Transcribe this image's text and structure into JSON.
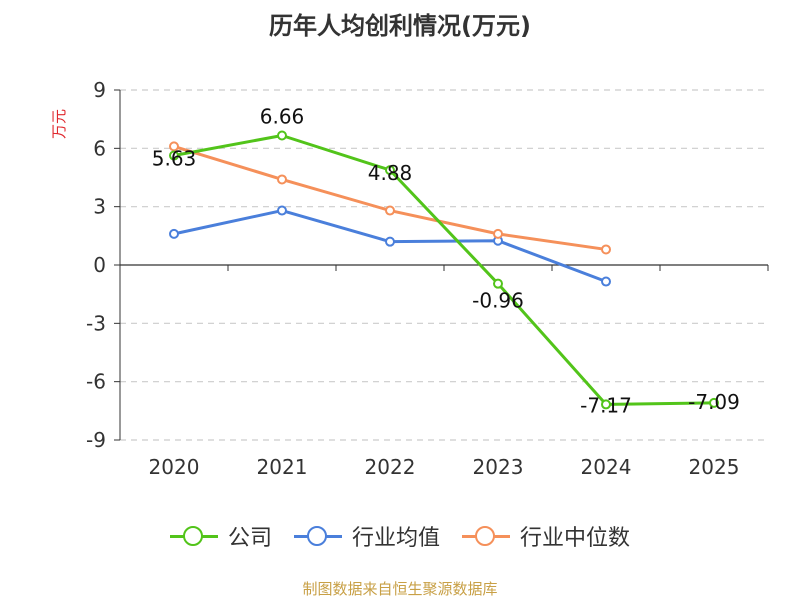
{
  "chart_data": {
    "type": "line",
    "title": "历年人均创利情况(万元)",
    "ylabel": "万元",
    "xlabel": "",
    "categories": [
      "2020",
      "2021",
      "2022",
      "2023",
      "2024",
      "2025"
    ],
    "ylim": [
      -9,
      9
    ],
    "yticks": [
      "9",
      "6",
      "3",
      "0",
      "-3",
      "-6",
      "-9"
    ],
    "grid": true,
    "legend_position": "bottom",
    "series": [
      {
        "name": "公司",
        "color": "#52c41a",
        "values": [
          5.63,
          6.66,
          4.88,
          -0.96,
          -7.17,
          -7.09
        ],
        "labels": [
          "5.63",
          "6.66",
          "4.88",
          "-0.96",
          "-7.17",
          "-7.09"
        ]
      },
      {
        "name": "行业均值",
        "color": "#4a7fdb",
        "values": [
          1.6,
          2.8,
          1.2,
          1.25,
          -0.85,
          null
        ]
      },
      {
        "name": "行业中位数",
        "color": "#f5905a",
        "values": [
          6.1,
          4.4,
          2.8,
          1.6,
          0.8,
          null
        ]
      }
    ]
  },
  "source": "制图数据来自恒生聚源数据库"
}
